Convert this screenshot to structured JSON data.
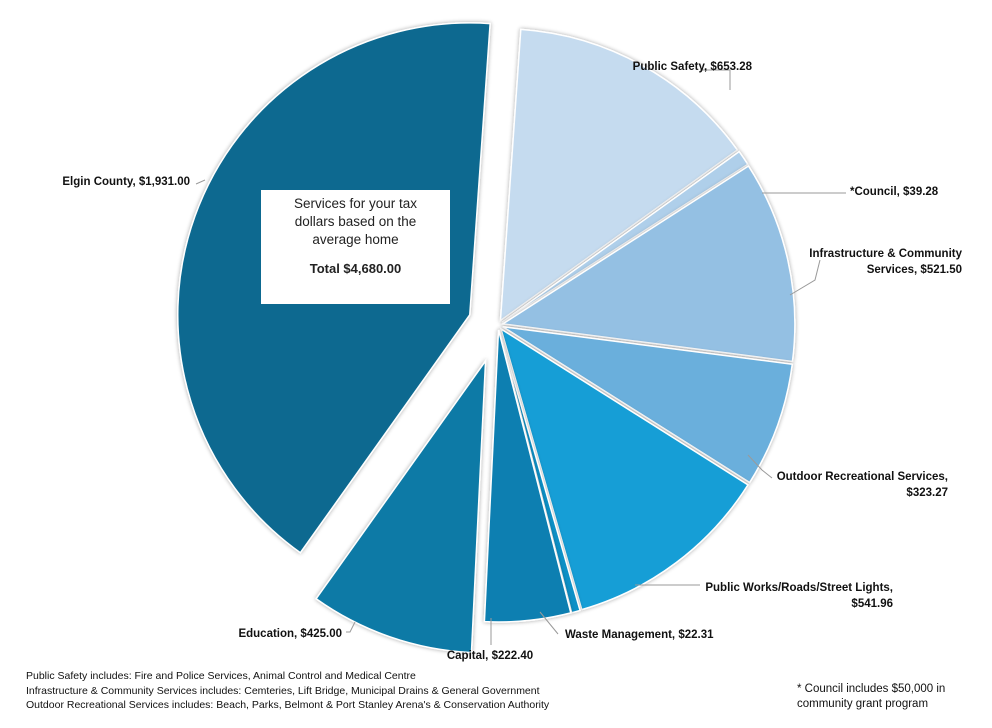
{
  "chart_data": {
    "type": "pie",
    "total_label": "Total $4,680.00",
    "description": "Services for your tax dollars based on the average home",
    "slices": [
      {
        "name": "Public Safety",
        "value": 653.28,
        "label_lines": [
          "Public Safety,  $653.28"
        ],
        "color": "#c5dbef"
      },
      {
        "name": "*Council",
        "value": 39.28,
        "label_lines": [
          "*Council,  $39.28"
        ],
        "color": "#afcfea"
      },
      {
        "name": "Infrastructure & Community Services",
        "value": 521.5,
        "label_lines": [
          "Infrastructure & Community",
          "Services,  $521.50"
        ],
        "color": "#94c0e3"
      },
      {
        "name": "Outdoor Recreational Services",
        "value": 323.27,
        "label_lines": [
          "Outdoor Recreational Services,",
          "$323.27"
        ],
        "color": "#6aafdc"
      },
      {
        "name": "Public Works/Roads/Street Lights",
        "value": 541.96,
        "label_lines": [
          "Public Works/Roads/Street Lights,",
          "$541.96"
        ],
        "color": "#129ed6"
      },
      {
        "name": "Waste Management",
        "value": 22.31,
        "label_lines": [
          "Waste Management,  $22.31"
        ],
        "color": "#1190c6"
      },
      {
        "name": "Capital",
        "value": 222.4,
        "label_lines": [
          "Capital,  $222.40"
        ],
        "color": "#0a7fb1"
      },
      {
        "name": "Education",
        "value": 425.0,
        "label_lines": [
          "Education,  $425.00"
        ],
        "color": "#0a7aa6"
      },
      {
        "name": "Elgin County",
        "value": 1931.0,
        "label_lines": [
          "Elgin County,  $1,931.00"
        ],
        "color": "#086990"
      }
    ]
  },
  "notes": [
    "Public Safety includes: Fire and Police Services, Animal Control and Medical Centre",
    "Infrastructure & Community Services includes: Cemteries, Lift Bridge, Municipal Drains & General Government",
    "Outdoor Recreational Services includes: Beach, Parks, Belmont & Port Stanley Arena's & Conservation Authority"
  ],
  "council_note": "* Council includes $50,000 in community grant program"
}
